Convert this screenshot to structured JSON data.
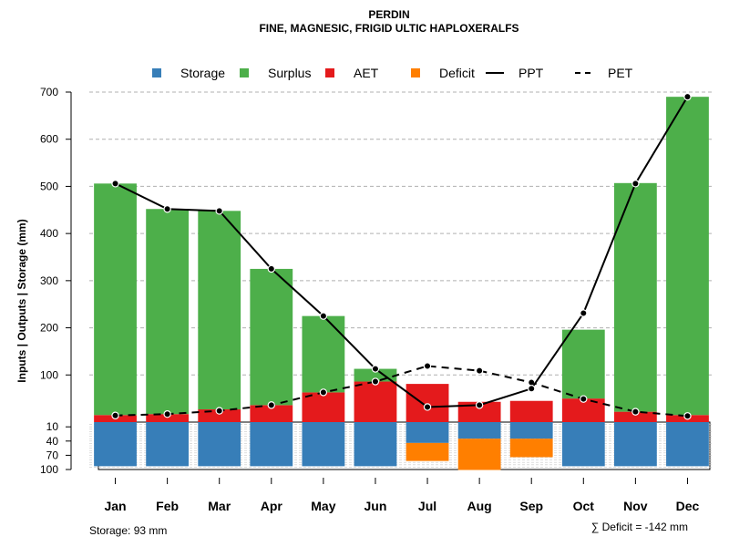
{
  "chart_data": {
    "type": "bar",
    "title": "PERDIN",
    "subtitle": "FINE, MAGNESIC, FRIGID ULTIC HAPLOXERALFS",
    "ylabel": "Inputs | Outputs | Storage    (mm)",
    "categories": [
      "Jan",
      "Feb",
      "Mar",
      "Apr",
      "May",
      "Jun",
      "Jul",
      "Aug",
      "Sep",
      "Oct",
      "Nov",
      "Dec"
    ],
    "upper_axis": {
      "ylim": [
        0,
        700
      ],
      "ticks": [
        100,
        200,
        300,
        400,
        500,
        600,
        700
      ],
      "grid": true
    },
    "lower_axis": {
      "ylim": [
        0,
        100
      ],
      "ticks": [
        10,
        40,
        70,
        100
      ],
      "grid": true
    },
    "series": [
      {
        "name": "AET",
        "color": "#E41A1C",
        "values": [
          15,
          17,
          27,
          36,
          63,
          86,
          81,
          43,
          45,
          50,
          22,
          15
        ]
      },
      {
        "name": "Surplus",
        "color": "#4DAF4A",
        "values": [
          491,
          435,
          421,
          289,
          162,
          27,
          0,
          0,
          0,
          146,
          485,
          675
        ]
      },
      {
        "name": "PPT",
        "color": "#000000",
        "line": "solid",
        "values": [
          506,
          452,
          448,
          325,
          225,
          113,
          32,
          36,
          71,
          231,
          506,
          690
        ]
      },
      {
        "name": "PET",
        "color": "#000000",
        "line": "dashed",
        "values": [
          14,
          17,
          24,
          36,
          63,
          86,
          119,
          109,
          84,
          49,
          22,
          13
        ]
      },
      {
        "name": "Storage",
        "color": "#377EB8",
        "values": [
          93,
          93,
          93,
          93,
          93,
          93,
          44,
          35,
          35,
          93,
          93,
          93
        ]
      },
      {
        "name": "Deficit",
        "color": "#FF7F00",
        "values": [
          0,
          0,
          0,
          0,
          0,
          0,
          38,
          66,
          39,
          0,
          0,
          0
        ]
      }
    ],
    "legend": {
      "position": "top",
      "items": [
        {
          "label": "Storage",
          "symbol": "square",
          "color": "#377EB8"
        },
        {
          "label": "Surplus",
          "symbol": "square",
          "color": "#4DAF4A"
        },
        {
          "label": "AET",
          "symbol": "square",
          "color": "#E41A1C"
        },
        {
          "label": "Deficit",
          "symbol": "square",
          "color": "#FF7F00"
        },
        {
          "label": "PPT",
          "symbol": "solid-line",
          "color": "#000000"
        },
        {
          "label": "PET",
          "symbol": "dashed-line",
          "color": "#000000"
        }
      ]
    },
    "storage_note": "Storage: 93 mm",
    "deficit_note": "∑ Deficit = -142 mm"
  }
}
